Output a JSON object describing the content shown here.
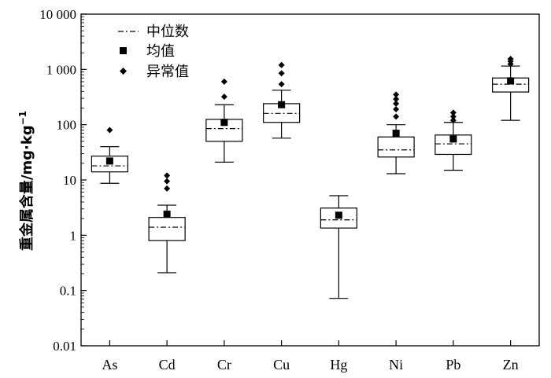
{
  "chart_data": {
    "type": "box",
    "ylabel_main": "重金属含量/mg·kg",
    "ylabel_sup": "−1",
    "yscale": "log",
    "ylim": [
      0.01,
      10000
    ],
    "yticks": [
      {
        "value": 10000,
        "label": "10 000"
      },
      {
        "value": 1000,
        "label": "1 000"
      },
      {
        "value": 100,
        "label": "100"
      },
      {
        "value": 10,
        "label": "10"
      },
      {
        "value": 1,
        "label": "1"
      },
      {
        "value": 0.1,
        "label": "0.1"
      },
      {
        "value": 0.01,
        "label": "0.01"
      }
    ],
    "legend": {
      "position": "top-left",
      "median": "中位数",
      "mean": "均值",
      "outlier": "异常值"
    },
    "categories": [
      "As",
      "Cd",
      "Cr",
      "Cu",
      "Hg",
      "Ni",
      "Pb",
      "Zn"
    ],
    "boxes": [
      {
        "name": "As",
        "min": 8.7,
        "q1": 14,
        "median": 18,
        "q3": 27,
        "max": 40,
        "mean": 22,
        "outliers": [
          80
        ]
      },
      {
        "name": "Cd",
        "min": 0.21,
        "q1": 0.8,
        "median": 1.4,
        "q3": 2.1,
        "max": 3.5,
        "mean": 2.4,
        "outliers": [
          7,
          9.5,
          12
        ]
      },
      {
        "name": "Cr",
        "min": 21,
        "q1": 50,
        "median": 85,
        "q3": 125,
        "max": 230,
        "mean": 110,
        "outliers": [
          320,
          600
        ]
      },
      {
        "name": "Cu",
        "min": 57,
        "q1": 110,
        "median": 160,
        "q3": 240,
        "max": 420,
        "mean": 230,
        "outliers": [
          540,
          850,
          1200
        ]
      },
      {
        "name": "Hg",
        "min": 0.072,
        "q1": 1.35,
        "median": 1.9,
        "q3": 3.1,
        "max": 5.2,
        "mean": 2.3,
        "outliers": []
      },
      {
        "name": "Ni",
        "min": 13,
        "q1": 26,
        "median": 35,
        "q3": 60,
        "max": 100,
        "mean": 70,
        "outliers": [
          140,
          190,
          240,
          290,
          350
        ]
      },
      {
        "name": "Pb",
        "min": 15,
        "q1": 29,
        "median": 45,
        "q3": 65,
        "max": 110,
        "mean": 55,
        "outliers": [
          120,
          140,
          165
        ]
      },
      {
        "name": "Zn",
        "min": 120,
        "q1": 390,
        "median": 540,
        "q3": 700,
        "max": 1150,
        "mean": 620,
        "outliers": [
          1250,
          1400,
          1550
        ]
      }
    ]
  }
}
